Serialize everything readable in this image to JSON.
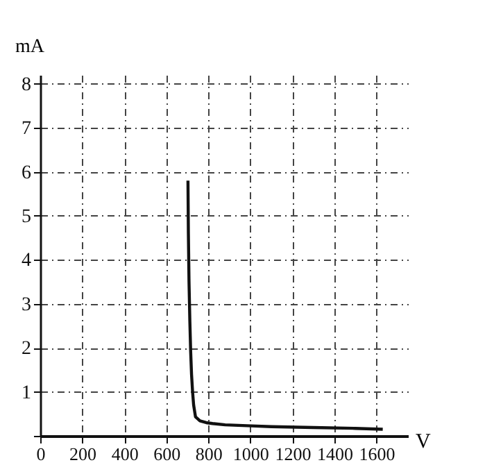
{
  "chart_data": {
    "type": "line",
    "xlabel": "V",
    "ylabel": "mA",
    "x": [
      703,
      705,
      708,
      712,
      716,
      720,
      725,
      730,
      739,
      760,
      790,
      820,
      880,
      984,
      1100,
      1300,
      1500,
      1630
    ],
    "series": [
      {
        "color": "#111111",
        "values": [
          5.8,
          4.6,
          3.5,
          2.6,
          1.9,
          1.4,
          1.0,
          0.7,
          0.43,
          0.34,
          0.3,
          0.28,
          0.25,
          0.23,
          0.21,
          0.19,
          0.17,
          0.15
        ]
      }
    ],
    "xlim": [
      0,
      1750
    ],
    "ylim": [
      0,
      8.2
    ],
    "xticks": [
      0,
      200,
      400,
      600,
      800,
      1000,
      1200,
      1400,
      1600
    ],
    "yticks": [
      {
        "value": 0,
        "label": null
      },
      1,
      2,
      3,
      4,
      5,
      6,
      7,
      8
    ],
    "grid": true,
    "marker": "none",
    "line_style": "solid"
  }
}
